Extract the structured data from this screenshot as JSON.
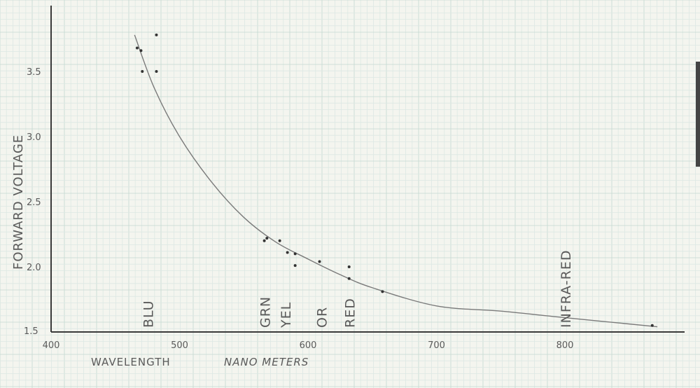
{
  "chart_data": {
    "type": "scatter",
    "xlabel": "WAVELENGTH",
    "xunit": "NANO METERS",
    "ylabel": "FORWARD VOLTAGE",
    "xlim": [
      400,
      880
    ],
    "ylim": [
      1.5,
      3.9
    ],
    "x_ticks": [
      400,
      500,
      600,
      700,
      800
    ],
    "x_tick_labels": [
      "400",
      "500",
      "600",
      "700",
      "800"
    ],
    "y_ticks": [
      1.5,
      2.0,
      2.5,
      3.0,
      3.5
    ],
    "y_tick_labels": [
      "1.5",
      "2.0",
      "2.5",
      "3.0",
      "3.5"
    ],
    "grid": true,
    "color_labels": [
      {
        "text": "BLU",
        "x": 475
      },
      {
        "text": "GRN",
        "x": 566
      },
      {
        "text": "YEL",
        "x": 582
      },
      {
        "text": "OR",
        "x": 610
      },
      {
        "text": "RED",
        "x": 632
      },
      {
        "text": "INFRA-RED",
        "x": 800
      }
    ],
    "points": [
      {
        "x": 467,
        "y": 3.68
      },
      {
        "x": 470,
        "y": 3.66
      },
      {
        "x": 471,
        "y": 3.5
      },
      {
        "x": 482,
        "y": 3.78
      },
      {
        "x": 482,
        "y": 3.5
      },
      {
        "x": 566,
        "y": 2.2
      },
      {
        "x": 568,
        "y": 2.22
      },
      {
        "x": 578,
        "y": 2.2
      },
      {
        "x": 584,
        "y": 2.11
      },
      {
        "x": 590,
        "y": 2.1
      },
      {
        "x": 590,
        "y": 2.01
      },
      {
        "x": 609,
        "y": 2.04
      },
      {
        "x": 632,
        "y": 2.0
      },
      {
        "x": 632,
        "y": 1.91
      },
      {
        "x": 658,
        "y": 1.81
      },
      {
        "x": 868,
        "y": 1.55
      }
    ],
    "curve": [
      {
        "x": 465,
        "y": 3.78
      },
      {
        "x": 480,
        "y": 3.38
      },
      {
        "x": 500,
        "y": 3.0
      },
      {
        "x": 525,
        "y": 2.65
      },
      {
        "x": 550,
        "y": 2.38
      },
      {
        "x": 575,
        "y": 2.19
      },
      {
        "x": 600,
        "y": 2.06
      },
      {
        "x": 625,
        "y": 1.94
      },
      {
        "x": 650,
        "y": 1.84
      },
      {
        "x": 700,
        "y": 1.7
      },
      {
        "x": 750,
        "y": 1.66
      },
      {
        "x": 800,
        "y": 1.61
      },
      {
        "x": 872,
        "y": 1.54
      }
    ]
  }
}
